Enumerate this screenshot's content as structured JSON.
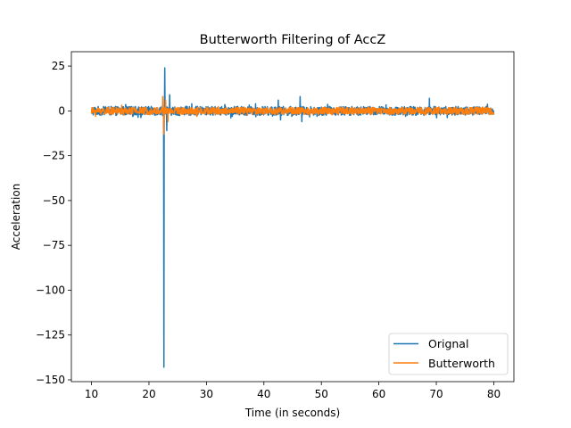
{
  "chart_data": {
    "type": "line",
    "title": "Butterworth Filtering of AccZ",
    "xlabel": "Time (in seconds)",
    "ylabel": "Acceleration",
    "xlim": [
      6.5,
      83.5
    ],
    "ylim": [
      -151,
      33
    ],
    "xticks": [
      10,
      20,
      30,
      40,
      50,
      60,
      70,
      80
    ],
    "yticks": [
      25,
      0,
      -25,
      -50,
      -75,
      -100,
      -125,
      -150
    ],
    "ytick_labels": [
      "25",
      "0",
      "−25",
      "−50",
      "−75",
      "−100",
      "−125",
      "−150"
    ],
    "legend_position": "lower right",
    "grid": false,
    "series": [
      {
        "name": "Orignal",
        "color": "#1f77b4",
        "x_range": [
          10,
          80
        ],
        "baseline_amplitude": 2.5,
        "events": [
          {
            "x": 22.6,
            "y": -143
          },
          {
            "x": 22.75,
            "y": 24
          },
          {
            "x": 23.1,
            "y": -11
          },
          {
            "x": 23.6,
            "y": 9
          },
          {
            "x": 42.5,
            "y": 6
          },
          {
            "x": 42.9,
            "y": -5
          },
          {
            "x": 46.3,
            "y": 8
          },
          {
            "x": 46.6,
            "y": -6
          },
          {
            "x": 68.8,
            "y": 7
          }
        ]
      },
      {
        "name": "Butterworth",
        "color": "#ff7f0e",
        "x_range": [
          10,
          80
        ],
        "baseline_amplitude": 2.0,
        "events": [
          {
            "x": 22.4,
            "y": 8
          },
          {
            "x": 22.6,
            "y": -13
          },
          {
            "x": 22.9,
            "y": 6
          },
          {
            "x": 23.3,
            "y": -6
          }
        ]
      }
    ]
  }
}
